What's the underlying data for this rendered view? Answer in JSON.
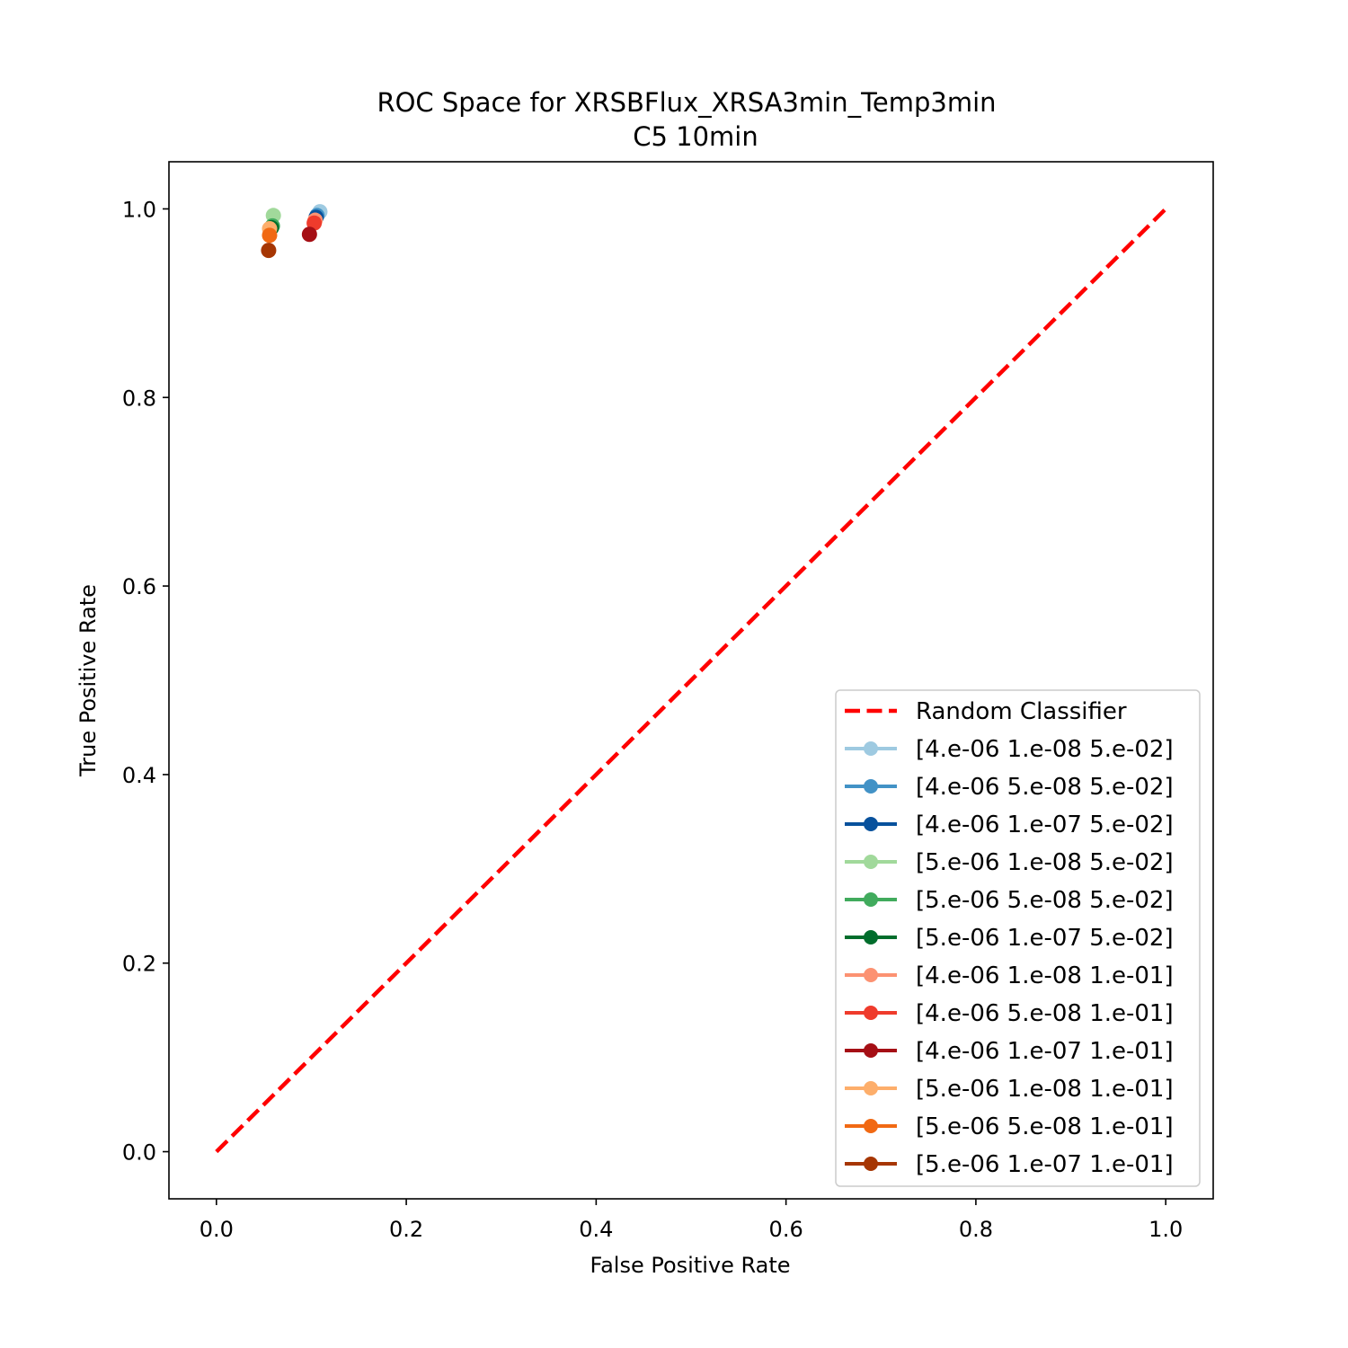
{
  "chart_data": {
    "type": "scatter",
    "title": "ROC Space for XRSBFlux_XRSA3min_Temp3min",
    "subtitle": "C5 10min",
    "xlabel": "False Positive Rate",
    "ylabel": "True Positive Rate",
    "xlim": [
      -0.05,
      1.05
    ],
    "ylim": [
      -0.05,
      1.05
    ],
    "xticks": [
      "0.0",
      "0.2",
      "0.4",
      "0.6",
      "0.8",
      "1.0"
    ],
    "yticks": [
      "0.0",
      "0.2",
      "0.4",
      "0.6",
      "0.8",
      "1.0"
    ],
    "grid": false,
    "legend_position": "lower-right",
    "reference_line": {
      "name": "Random Classifier",
      "color": "#ff0000",
      "style": "dashed",
      "x": [
        0,
        1
      ],
      "y": [
        0,
        1
      ]
    },
    "series": [
      {
        "name": "[4.e-06 1.e-08 5.e-02]",
        "color": "#9ecae1",
        "x": 0.109,
        "y": 0.997
      },
      {
        "name": "[4.e-06 5.e-08 5.e-02]",
        "color": "#4292c6",
        "x": 0.106,
        "y": 0.993
      },
      {
        "name": "[4.e-06 1.e-07 5.e-02]",
        "color": "#08519c",
        "x": 0.105,
        "y": 0.991
      },
      {
        "name": "[5.e-06 1.e-08 5.e-02]",
        "color": "#a1d99b",
        "x": 0.06,
        "y": 0.993
      },
      {
        "name": "[5.e-06 5.e-08 5.e-02]",
        "color": "#41ab5d",
        "x": 0.059,
        "y": 0.982
      },
      {
        "name": "[5.e-06 1.e-07 5.e-02]",
        "color": "#006d2c",
        "x": 0.058,
        "y": 0.98
      },
      {
        "name": "[4.e-06 1.e-08 1.e-01]",
        "color": "#fc9272",
        "x": 0.104,
        "y": 0.988
      },
      {
        "name": "[4.e-06 5.e-08 1.e-01]",
        "color": "#ef3b2c",
        "x": 0.103,
        "y": 0.985
      },
      {
        "name": "[4.e-06 1.e-07 1.e-01]",
        "color": "#a50f15",
        "x": 0.098,
        "y": 0.973
      },
      {
        "name": "[5.e-06 1.e-08 1.e-01]",
        "color": "#fdae6b",
        "x": 0.056,
        "y": 0.979
      },
      {
        "name": "[5.e-06 5.e-08 1.e-01]",
        "color": "#f16913",
        "x": 0.056,
        "y": 0.972
      },
      {
        "name": "[5.e-06 1.e-07 1.e-01]",
        "color": "#a63603",
        "x": 0.055,
        "y": 0.956
      }
    ]
  }
}
